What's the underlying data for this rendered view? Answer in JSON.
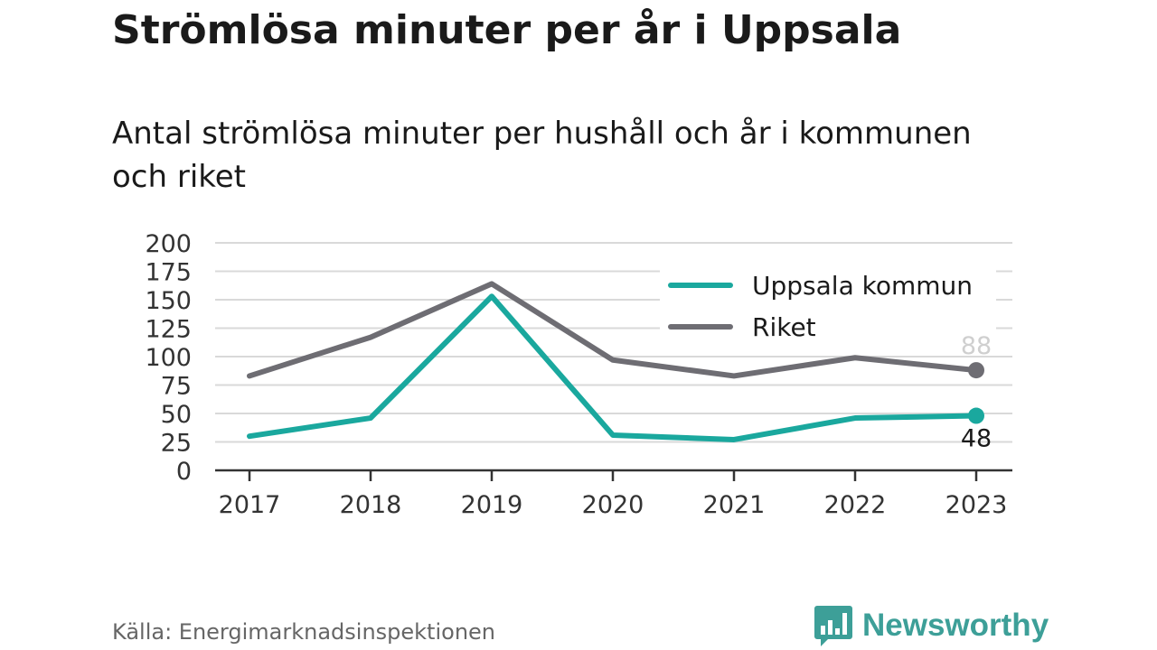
{
  "header": {
    "title": "Strömlösa minuter per år i Uppsala",
    "subtitle": "Antal strömlösa minuter per hushåll och år i kommunen och riket"
  },
  "footer": {
    "source": "Källa: Energimarknadsinspektionen",
    "brand": "Newsworthy"
  },
  "colors": {
    "uppsala": "#1aa89e",
    "riket": "#6e6d73",
    "grid": "#d9d9d9",
    "brand": "#3d9f98"
  },
  "icons": {
    "brand_logo": "bar-chart-speech-bubble-icon"
  },
  "chart_data": {
    "type": "line",
    "title": "Strömlösa minuter per år i Uppsala",
    "subtitle": "Antal strömlösa minuter per hushåll och år i kommunen och riket",
    "xlabel": "",
    "ylabel": "",
    "x": [
      "2017",
      "2018",
      "2019",
      "2020",
      "2021",
      "2022",
      "2023"
    ],
    "y_ticks": [
      0,
      25,
      50,
      75,
      100,
      125,
      150,
      175,
      200
    ],
    "ylim": [
      0,
      200
    ],
    "grid": true,
    "legend_position": "top-right",
    "series": [
      {
        "name": "Uppsala kommun",
        "color": "#1aa89e",
        "values": [
          30,
          46,
          153,
          31,
          27,
          46,
          48
        ],
        "end_label": "48"
      },
      {
        "name": "Riket",
        "color": "#6e6d73",
        "values": [
          83,
          117,
          164,
          97,
          83,
          99,
          88
        ],
        "end_label": "88"
      }
    ]
  }
}
